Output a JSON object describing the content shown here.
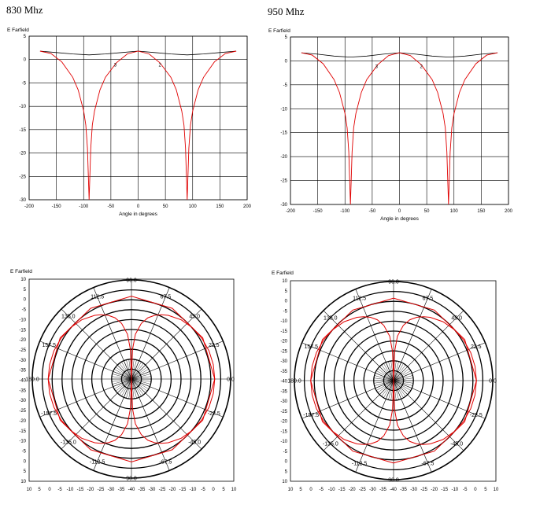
{
  "headings": {
    "left": "830 Mhz",
    "right": "950 Mhz"
  },
  "chart_data": [
    {
      "type": "line",
      "ylabel": "E Farfield",
      "xlabel": "Angle in degrees",
      "xlim": [
        -200,
        200
      ],
      "ylim": [
        -30,
        5
      ],
      "xticks": [
        -200,
        -150,
        -100,
        -50,
        0,
        50,
        100,
        150,
        200
      ],
      "yticks": [
        5,
        0,
        -5,
        -10,
        -15,
        -20,
        -25,
        -30
      ],
      "markers": [
        {
          "label": "3",
          "x": -42,
          "y": -1
        },
        {
          "label": "2",
          "x": 40,
          "y": -1
        }
      ],
      "series": [
        {
          "color": "#000000",
          "x": [
            -180,
            -150,
            -120,
            -90,
            -60,
            -30,
            0,
            30,
            60,
            90,
            120,
            150,
            180
          ],
          "y": [
            1.8,
            1.5,
            1.2,
            1.0,
            1.2,
            1.5,
            1.8,
            1.5,
            1.2,
            1.0,
            1.2,
            1.5,
            1.8
          ]
        },
        {
          "color": "#e00000",
          "x": [
            -180,
            -160,
            -140,
            -120,
            -110,
            -100,
            -96,
            -93,
            -90,
            -87,
            -84,
            -80,
            -70,
            -60,
            -40,
            -20,
            0,
            20,
            40,
            60,
            70,
            80,
            84,
            87,
            90,
            93,
            96,
            100,
            110,
            120,
            140,
            160,
            180
          ],
          "y": [
            1.8,
            1.3,
            -0.5,
            -3.8,
            -6.5,
            -11,
            -14,
            -19,
            -30,
            -19,
            -14,
            -11,
            -6.5,
            -3.8,
            -0.7,
            1.2,
            1.8,
            1.2,
            -0.7,
            -3.8,
            -6.5,
            -11,
            -14,
            -19,
            -30,
            -19,
            -14,
            -11,
            -6.5,
            -3.8,
            -0.5,
            1.3,
            1.8
          ]
        }
      ]
    },
    {
      "type": "line",
      "ylabel": "E Farfield",
      "xlabel": "Angle in degrees",
      "xlim": [
        -200,
        200
      ],
      "ylim": [
        -30,
        5
      ],
      "xticks": [
        -200,
        -150,
        -100,
        -50,
        0,
        50,
        100,
        150,
        200
      ],
      "yticks": [
        5,
        0,
        -5,
        -10,
        -15,
        -20,
        -25,
        -30
      ],
      "markers": [
        {
          "label": "3",
          "x": -42,
          "y": -1
        },
        {
          "label": "2",
          "x": 40,
          "y": -1
        }
      ],
      "series": [
        {
          "color": "#000000",
          "x": [
            -180,
            -150,
            -120,
            -90,
            -60,
            -30,
            0,
            30,
            60,
            90,
            120,
            150,
            180
          ],
          "y": [
            1.7,
            1.4,
            1.0,
            0.8,
            1.0,
            1.4,
            1.7,
            1.4,
            1.0,
            0.8,
            1.0,
            1.4,
            1.7
          ]
        },
        {
          "color": "#e00000",
          "x": [
            -180,
            -160,
            -140,
            -120,
            -110,
            -100,
            -96,
            -93,
            -90,
            -87,
            -84,
            -80,
            -70,
            -60,
            -40,
            -20,
            0,
            20,
            40,
            60,
            70,
            80,
            84,
            87,
            90,
            93,
            96,
            100,
            110,
            120,
            140,
            160,
            180
          ],
          "y": [
            1.7,
            1.2,
            -0.6,
            -3.9,
            -6.6,
            -11,
            -14,
            -19,
            -30,
            -19,
            -14,
            -11,
            -6.6,
            -3.9,
            -0.8,
            1.1,
            1.7,
            1.1,
            -0.8,
            -3.9,
            -6.6,
            -11,
            -14,
            -19,
            -30,
            -19,
            -14,
            -11,
            -6.6,
            -3.9,
            -0.6,
            1.2,
            1.7
          ]
        }
      ]
    },
    {
      "type": "polar",
      "ylabel": "E Farfield",
      "rlim": [
        -40,
        10
      ],
      "rings": [
        -35,
        -30,
        -25,
        -20,
        -15,
        -10,
        -5,
        0,
        5,
        10
      ],
      "yticks": [
        10,
        5,
        0,
        -5,
        -10,
        -15,
        -20,
        -25,
        -30,
        -35,
        -40,
        -35,
        -30,
        -25,
        -20,
        -15,
        -10,
        -5,
        0,
        5,
        10
      ],
      "xticks": [
        10,
        5,
        0,
        -5,
        -10,
        -15,
        -20,
        -25,
        -30,
        -35,
        -40,
        -35,
        -30,
        -25,
        -20,
        -15,
        -10,
        -5,
        0,
        5,
        10
      ],
      "angle_labels": [
        {
          "label": "90.0",
          "deg": 90
        },
        {
          "label": "67.5",
          "deg": 67.5
        },
        {
          "label": "45.0",
          "deg": 45
        },
        {
          "label": "22.5",
          "deg": 22.5
        },
        {
          "label": "0.0",
          "deg": 0
        },
        {
          "label": "-22.5",
          "deg": -22.5
        },
        {
          "label": "-45.0",
          "deg": -45
        },
        {
          "label": "-67.5",
          "deg": -67.5
        },
        {
          "label": "90.0",
          "deg": -90
        },
        {
          "label": "-112.5",
          "deg": -112.5
        },
        {
          "label": "-135.0",
          "deg": -135
        },
        {
          "label": "-157.5",
          "deg": -157.5
        },
        {
          "label": "180.0",
          "deg": 180
        },
        {
          "label": "157.5",
          "deg": 157.5
        },
        {
          "label": "135.0",
          "deg": 135
        },
        {
          "label": "112.5",
          "deg": 112.5
        }
      ],
      "series": [
        {
          "color": "#e00000",
          "theta": [
            -180,
            -150,
            -120,
            -90,
            -60,
            -30,
            0,
            30,
            60,
            90,
            120,
            150,
            180
          ],
          "r": [
            2.0,
            1.5,
            1.2,
            1.8,
            1.2,
            1.5,
            2.0,
            1.5,
            1.2,
            1.8,
            1.2,
            1.5,
            2.0
          ]
        },
        {
          "color": "#e00000",
          "theta": [
            0,
            10,
            20,
            30,
            40,
            50,
            60,
            65,
            70,
            75,
            80,
            85,
            88,
            90,
            92,
            95,
            100,
            105,
            110,
            115,
            120,
            130,
            140,
            150,
            160,
            170,
            180,
            190,
            200,
            210,
            220,
            230,
            240,
            245,
            250,
            255,
            260,
            265,
            268,
            270,
            272,
            275,
            280,
            285,
            290,
            295,
            300,
            310,
            320,
            330,
            340,
            350,
            360
          ],
          "r": [
            2.0,
            1.9,
            1.6,
            1.0,
            0.2,
            -1.0,
            -2.9,
            -4.2,
            -5.8,
            -8.0,
            -11.5,
            -17.3,
            -25.2,
            -40,
            -25.2,
            -17.3,
            -11.5,
            -8.0,
            -5.8,
            -4.2,
            -2.9,
            -1.0,
            0.2,
            1.0,
            1.6,
            1.9,
            2.0,
            1.9,
            1.6,
            1.0,
            0.2,
            -1.0,
            -2.9,
            -4.2,
            -5.8,
            -8.0,
            -11.5,
            -17.3,
            -25.2,
            -40,
            -25.2,
            -17.3,
            -11.5,
            -8.0,
            -5.8,
            -4.2,
            -2.9,
            -1.0,
            0.2,
            1.0,
            1.6,
            1.9,
            2.0
          ]
        }
      ]
    },
    {
      "type": "polar",
      "ylabel": "E Farfield",
      "rlim": [
        -40,
        10
      ],
      "rings": [
        -35,
        -30,
        -25,
        -20,
        -15,
        -10,
        -5,
        0,
        5,
        10
      ],
      "yticks": [
        10,
        5,
        0,
        -5,
        -10,
        -15,
        -20,
        -25,
        -30,
        -35,
        -40,
        -35,
        -30,
        -25,
        -20,
        -15,
        -10,
        -5,
        0,
        5,
        10
      ],
      "xticks": [
        10,
        5,
        0,
        -5,
        -10,
        -15,
        -20,
        -25,
        -30,
        -35,
        -40,
        -35,
        -30,
        -25,
        -20,
        -15,
        -10,
        -5,
        0,
        5,
        10
      ],
      "angle_labels": [
        {
          "label": "90.0",
          "deg": 90
        },
        {
          "label": "67.5",
          "deg": 67.5
        },
        {
          "label": "45.0",
          "deg": 45
        },
        {
          "label": "22.5",
          "deg": 22.5
        },
        {
          "label": "0.0",
          "deg": 0
        },
        {
          "label": "-22.5",
          "deg": -22.5
        },
        {
          "label": "-45.0",
          "deg": -45
        },
        {
          "label": "-67.5",
          "deg": -67.5
        },
        {
          "label": "90.0",
          "deg": -90
        },
        {
          "label": "-112.5",
          "deg": -112.5
        },
        {
          "label": "-135.0",
          "deg": -135
        },
        {
          "label": "-157.5",
          "deg": -157.5
        },
        {
          "label": "180.0",
          "deg": 180
        },
        {
          "label": "157.5",
          "deg": 157.5
        },
        {
          "label": "135.0",
          "deg": 135
        },
        {
          "label": "112.5",
          "deg": 112.5
        }
      ],
      "series": [
        {
          "color": "#e00000",
          "theta": [
            -180,
            -150,
            -120,
            -90,
            -60,
            -30,
            0,
            30,
            60,
            90,
            120,
            150,
            180
          ],
          "r": [
            1.8,
            1.4,
            1.1,
            1.6,
            1.1,
            1.4,
            1.8,
            1.4,
            1.1,
            1.6,
            1.1,
            1.4,
            1.8
          ]
        },
        {
          "color": "#e00000",
          "theta": [
            0,
            10,
            20,
            30,
            40,
            50,
            60,
            65,
            70,
            75,
            80,
            85,
            88,
            90,
            92,
            95,
            100,
            105,
            110,
            115,
            120,
            130,
            140,
            150,
            160,
            170,
            180,
            190,
            200,
            210,
            220,
            230,
            240,
            245,
            250,
            255,
            260,
            265,
            268,
            270,
            272,
            275,
            280,
            285,
            290,
            295,
            300,
            310,
            320,
            330,
            340,
            350,
            360
          ],
          "r": [
            1.8,
            1.7,
            1.4,
            0.8,
            0.0,
            -1.2,
            -3.1,
            -4.4,
            -6.0,
            -8.2,
            -11.7,
            -17.5,
            -25.4,
            -40,
            -25.4,
            -17.5,
            -11.7,
            -8.2,
            -6.0,
            -4.4,
            -3.1,
            -1.2,
            0.0,
            0.8,
            1.4,
            1.7,
            1.8,
            1.7,
            1.4,
            0.8,
            0.0,
            -1.2,
            -3.1,
            -4.4,
            -6.0,
            -8.2,
            -11.7,
            -17.5,
            -25.4,
            -40,
            -25.4,
            -17.5,
            -11.7,
            -8.2,
            -6.0,
            -4.4,
            -3.1,
            -1.2,
            0.0,
            0.8,
            1.4,
            1.7,
            1.8
          ]
        }
      ]
    }
  ]
}
